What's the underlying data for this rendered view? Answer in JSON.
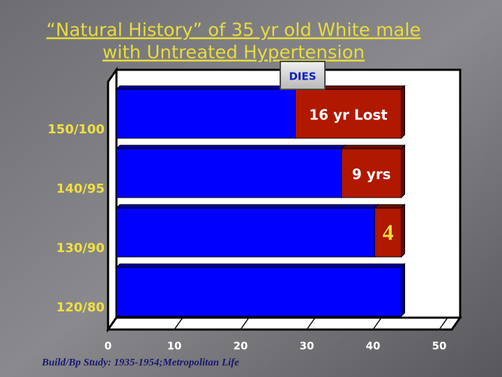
{
  "chart_data": {
    "type": "stacked-bar-horizontal",
    "title": [
      "“Natural History” of 35 yr old White male",
      "with Untreated Hypertension"
    ],
    "annotation": "DIES",
    "footnote": "Build/Bp Study: 1935-1954;Metropolitan Life",
    "categories": [
      "150/100",
      "140/95",
      "130/90",
      "120/80"
    ],
    "series": [
      {
        "color": "#0000ff",
        "values": [
          27,
          34,
          39,
          43
        ]
      },
      {
        "color": "#b01800",
        "values": [
          16,
          9,
          4,
          null
        ],
        "value_labels": [
          "16 yr Lost",
          "9 yrs",
          "4",
          null
        ]
      }
    ],
    "xlim": [
      0,
      50
    ],
    "xticks": [
      0,
      10,
      20,
      30,
      40,
      50
    ],
    "grid": true
  }
}
